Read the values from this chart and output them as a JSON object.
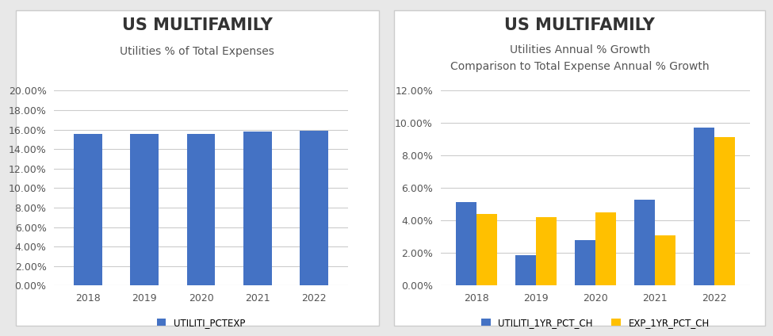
{
  "chart1": {
    "title": "US MULTIFAMILY",
    "subtitle": "Utilities % of Total Expenses",
    "years": [
      "2018",
      "2019",
      "2020",
      "2021",
      "2022"
    ],
    "values": [
      0.1555,
      0.156,
      0.1553,
      0.158,
      0.1587
    ],
    "bar_color": "#4472C4",
    "ylim": [
      0,
      0.2
    ],
    "yticks": [
      0.0,
      0.02,
      0.04,
      0.06,
      0.08,
      0.1,
      0.12,
      0.14,
      0.16,
      0.18,
      0.2
    ],
    "legend_label": "UTILITI_PCTEXP"
  },
  "chart2": {
    "title": "US MULTIFAMILY",
    "subtitle1": "Utilities Annual % Growth",
    "subtitle2": "Comparison to Total Expense Annual % Growth",
    "years": [
      "2018",
      "2019",
      "2020",
      "2021",
      "2022"
    ],
    "blue_values": [
      0.0515,
      0.0188,
      0.0278,
      0.053,
      0.0972
    ],
    "gold_values": [
      0.044,
      0.042,
      0.045,
      0.031,
      0.0915
    ],
    "blue_color": "#4472C4",
    "gold_color": "#FFC000",
    "ylim": [
      0,
      0.12
    ],
    "yticks": [
      0.0,
      0.02,
      0.04,
      0.06,
      0.08,
      0.1,
      0.12
    ],
    "legend_blue": "UTILITI_1YR_PCT_CH",
    "legend_gold": "EXP_1YR_PCT_CH"
  },
  "bg_color": "#e8e8e8",
  "panel_bg": "#ffffff",
  "title_fontsize": 15,
  "subtitle_fontsize": 10,
  "tick_fontsize": 9,
  "legend_fontsize": 8.5
}
